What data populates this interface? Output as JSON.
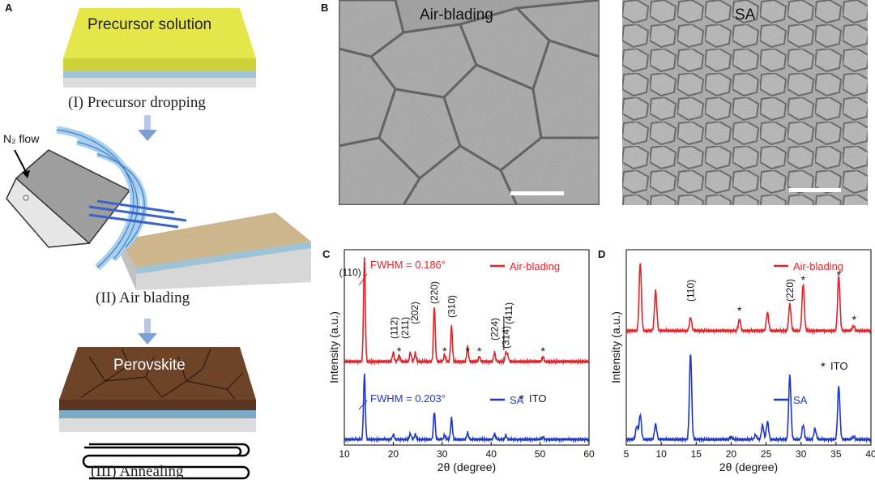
{
  "panel_a": {
    "letter": "A",
    "precursor_label": "Precursor solution",
    "step1": "(I) Precursor dropping",
    "n2_label": "N₂ flow",
    "step2": "(II) Air blading",
    "perovskite_label": "Perovskite",
    "step3": "(III) Annealing"
  },
  "panel_b": {
    "letter": "B",
    "left_title": "Air-blading",
    "right_title": "SA"
  },
  "panel_c": {
    "letter": "C",
    "fwhm_top": "FWHM = 0.186°",
    "fwhm_bottom": "FWHM = 0.203°",
    "ito_label": "ITO",
    "peak_labels": [
      "(110)",
      "(112)",
      "(211)",
      "(202)",
      "(220)",
      "(310)",
      "(224)",
      "(314)",
      "(411)"
    ]
  },
  "panel_d": {
    "letter": "D",
    "ito_label": "ITO",
    "peak_labels": [
      "(110)",
      "(220)"
    ]
  },
  "colors": {
    "red": "#e0242a",
    "blue": "#1c37c8",
    "scale_bar": "#ffffff"
  },
  "chart_data": [
    {
      "type": "line",
      "xlabel": "2θ (degree)",
      "ylabel": "Intensity (a.u.)",
      "xlim": [
        10,
        60
      ],
      "x_ticks": [
        "10",
        "20",
        "30",
        "40",
        "50",
        "60"
      ],
      "legend": "top-right",
      "series": [
        {
          "name": "Air-blading",
          "color": "#e0242a",
          "peaks": [
            [
              14.1,
              1.0
            ],
            [
              20.0,
              0.09
            ],
            [
              21.2,
              0.06
            ],
            [
              23.5,
              0.09
            ],
            [
              24.5,
              0.08
            ],
            [
              28.4,
              0.54
            ],
            [
              30.5,
              0.07
            ],
            [
              31.9,
              0.34
            ],
            [
              35.2,
              0.14
            ],
            [
              37.6,
              0.05
            ],
            [
              40.7,
              0.09
            ],
            [
              43.0,
              0.08
            ],
            [
              43.4,
              0.06
            ],
            [
              50.6,
              0.05
            ]
          ]
        },
        {
          "name": "SA",
          "color": "#1c37c8",
          "peaks": [
            [
              14.1,
              0.79
            ],
            [
              20.0,
              0.06
            ],
            [
              23.5,
              0.07
            ],
            [
              24.5,
              0.06
            ],
            [
              28.4,
              0.34
            ],
            [
              30.5,
              0.05
            ],
            [
              31.9,
              0.26
            ],
            [
              35.2,
              0.08
            ],
            [
              40.7,
              0.07
            ],
            [
              43.0,
              0.05
            ],
            [
              50.6,
              0.03
            ]
          ]
        }
      ]
    },
    {
      "type": "line",
      "xlabel": "2θ (degree)",
      "ylabel": "Intensity (a.u.)",
      "xlim": [
        5,
        40
      ],
      "x_ticks": [
        "5",
        "10",
        "15",
        "20",
        "25",
        "30",
        "35",
        "40"
      ],
      "legend": "top-right",
      "series": [
        {
          "name": "Air-blading",
          "color": "#e0242a",
          "peaks": [
            [
              7.0,
              0.72
            ],
            [
              9.2,
              0.42
            ],
            [
              14.2,
              0.14
            ],
            [
              21.2,
              0.12
            ],
            [
              25.2,
              0.19
            ],
            [
              28.4,
              0.28
            ],
            [
              30.3,
              0.49
            ],
            [
              35.4,
              0.58
            ],
            [
              37.5,
              0.05
            ]
          ]
        },
        {
          "name": "SA",
          "color": "#1c37c8",
          "peaks": [
            [
              6.5,
              0.15
            ],
            [
              7.0,
              0.28
            ],
            [
              9.2,
              0.17
            ],
            [
              14.2,
              0.97
            ],
            [
              20.0,
              0.03
            ],
            [
              23.5,
              0.05
            ],
            [
              24.5,
              0.16
            ],
            [
              25.2,
              0.2
            ],
            [
              28.4,
              0.72
            ],
            [
              30.3,
              0.16
            ],
            [
              32.0,
              0.12
            ],
            [
              35.4,
              0.6
            ],
            [
              37.5,
              0.03
            ]
          ]
        }
      ]
    }
  ]
}
